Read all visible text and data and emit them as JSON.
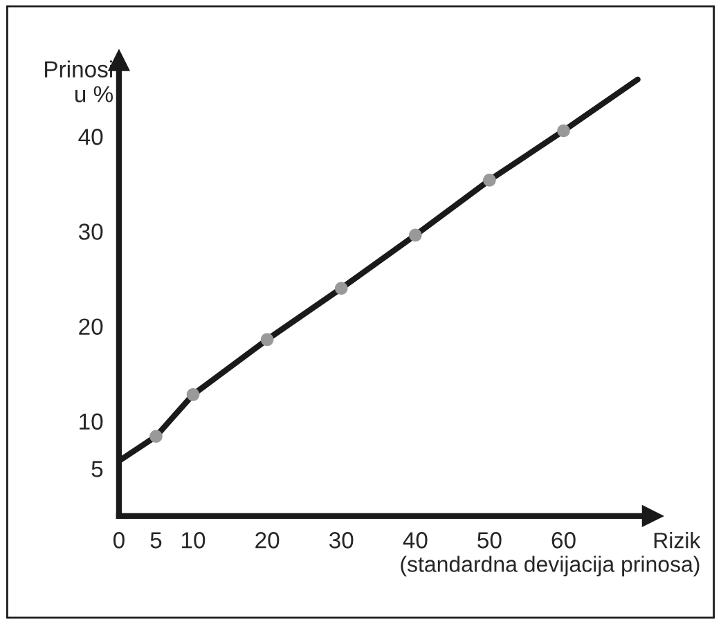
{
  "chart_data": {
    "type": "line",
    "xlabel": "Rizik\n(standardna devijacija prinosa)",
    "ylabel": "Prinosi\nu %",
    "xlim": [
      0,
      72
    ],
    "ylim": [
      0,
      48
    ],
    "xticks": [
      0,
      5,
      10,
      20,
      30,
      40,
      50,
      60
    ],
    "yticks": [
      5,
      10,
      20,
      30,
      40
    ],
    "grid": false,
    "marker": "none",
    "line_style": "solid",
    "series": [
      {
        "color": "#1a1a1a",
        "x": [
          0,
          5,
          10,
          20,
          30,
          40,
          50,
          60,
          70
        ],
        "values": [
          5.8,
          8.4,
          12.8,
          18.6,
          24,
          29.6,
          35.4,
          40.6,
          46
        ]
      },
      {
        "type": "scatter",
        "marker": "circle",
        "color": "#999999",
        "x": [
          5,
          10,
          20,
          30,
          40,
          50,
          60
        ],
        "values": [
          8.4,
          12.8,
          18.6,
          24,
          29.6,
          35.4,
          40.6
        ]
      }
    ]
  }
}
